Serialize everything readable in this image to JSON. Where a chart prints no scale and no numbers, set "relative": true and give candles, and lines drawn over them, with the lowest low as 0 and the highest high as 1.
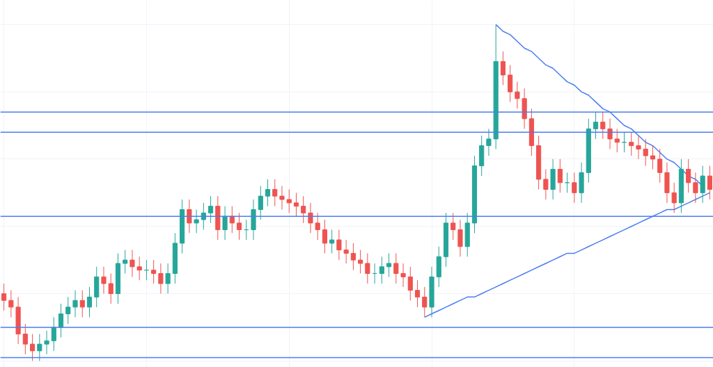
{
  "chart_data": {
    "type": "candlestick",
    "relative": true,
    "grid": true,
    "categories": [
      null,
      null,
      null,
      null,
      null,
      null,
      null,
      null,
      null,
      null,
      null,
      null,
      null,
      null,
      null,
      null,
      null,
      null,
      null,
      null,
      null,
      null,
      null,
      null,
      null,
      null,
      null,
      null,
      null,
      null,
      null,
      null,
      null,
      null,
      null,
      null,
      null,
      null,
      null,
      null,
      null,
      null,
      null,
      null,
      null,
      null,
      null,
      null,
      null,
      null,
      null,
      null,
      null,
      null,
      null,
      null,
      null,
      null,
      null,
      null,
      null,
      null,
      null,
      null,
      null,
      null,
      null,
      null,
      null,
      null,
      null,
      null,
      null,
      null,
      null,
      null,
      null,
      null,
      null,
      null,
      null,
      null,
      null,
      null,
      null,
      null,
      null,
      null,
      null,
      null,
      null,
      null,
      null,
      null,
      null,
      null,
      null,
      null,
      null,
      null
    ],
    "colors": [
      "#ef5350",
      "#ef5350",
      "#ef5350",
      "#ef5350",
      "#ef5350",
      "#26a69a",
      "#26a69a",
      "#26a69a",
      "#26a69a",
      "#26a69a",
      "#26a69a",
      "#ef5350",
      "#26a69a",
      "#26a69a",
      "#ef5350",
      "#ef5350",
      "#26a69a",
      "#26a69a",
      "#ef5350",
      "#ef5350",
      "#26a69a",
      "#ef5350",
      "#ef5350",
      "#26a69a",
      "#26a69a",
      "#26a69a",
      "#ef5350",
      "#26a69a",
      "#26a69a",
      "#26a69a",
      "#ef5350",
      "#26a69a",
      "#ef5350",
      "#ef5350",
      "#26a69a",
      "#26a69a",
      "#26a69a",
      "#26a69a",
      "#ef5350",
      "#ef5350",
      "#ef5350",
      "#ef5350",
      "#ef5350",
      "#ef5350",
      "#ef5350",
      "#ef5350",
      "#26a69a",
      "#ef5350",
      "#ef5350",
      "#ef5350",
      "#ef5350",
      "#ef5350",
      "#26a69a",
      "#26a69a",
      "#26a69a",
      "#ef5350",
      "#ef5350",
      "#ef5350",
      "#ef5350",
      "#ef5350",
      "#26a69a",
      "#26a69a",
      "#26a69a",
      "#ef5350",
      "#ef5350",
      "#26a69a",
      "#26a69a",
      "#26a69a",
      "#26a69a",
      "#26a69a",
      "#ef5350",
      "#ef5350",
      "#ef5350",
      "#ef5350",
      "#ef5350",
      "#ef5350",
      "#ef5350",
      "#26a69a",
      "#ef5350",
      "#26a69a",
      "#ef5350",
      "#26a69a",
      "#26a69a",
      "#26a69a",
      "#ef5350",
      "#ef5350",
      "#ef5350",
      "#26a69a",
      "#ef5350",
      "#ef5350",
      "#ef5350",
      "#ef5350",
      "#ef5350",
      "#ef5350",
      "#ef5350",
      "#26a69a",
      "#ef5350",
      "#ef5350",
      "#26a69a",
      "#ef5350"
    ],
    "ohlc": [
      [
        0.2,
        0.23,
        0.15,
        0.18
      ],
      [
        0.18,
        0.21,
        0.13,
        0.16
      ],
      [
        0.16,
        0.19,
        0.05,
        0.08
      ],
      [
        0.08,
        0.11,
        0.02,
        0.05
      ],
      [
        0.05,
        0.08,
        0.0,
        0.03
      ],
      [
        0.03,
        0.08,
        0.0,
        0.05
      ],
      [
        0.05,
        0.09,
        0.02,
        0.06
      ],
      [
        0.06,
        0.13,
        0.03,
        0.1
      ],
      [
        0.1,
        0.17,
        0.07,
        0.14
      ],
      [
        0.14,
        0.19,
        0.11,
        0.16
      ],
      [
        0.16,
        0.21,
        0.13,
        0.18
      ],
      [
        0.18,
        0.21,
        0.13,
        0.16
      ],
      [
        0.16,
        0.22,
        0.13,
        0.19
      ],
      [
        0.19,
        0.28,
        0.16,
        0.25
      ],
      [
        0.25,
        0.28,
        0.2,
        0.23
      ],
      [
        0.23,
        0.26,
        0.17,
        0.2
      ],
      [
        0.2,
        0.32,
        0.17,
        0.29
      ],
      [
        0.29,
        0.33,
        0.26,
        0.3
      ],
      [
        0.3,
        0.33,
        0.25,
        0.28
      ],
      [
        0.28,
        0.31,
        0.24,
        0.27
      ],
      [
        0.27,
        0.3,
        0.24,
        0.27
      ],
      [
        0.27,
        0.3,
        0.23,
        0.26
      ],
      [
        0.26,
        0.29,
        0.2,
        0.23
      ],
      [
        0.23,
        0.29,
        0.2,
        0.26
      ],
      [
        0.26,
        0.38,
        0.23,
        0.35
      ],
      [
        0.35,
        0.48,
        0.32,
        0.45
      ],
      [
        0.45,
        0.48,
        0.38,
        0.41
      ],
      [
        0.41,
        0.45,
        0.38,
        0.42
      ],
      [
        0.42,
        0.47,
        0.39,
        0.44
      ],
      [
        0.44,
        0.49,
        0.41,
        0.46
      ],
      [
        0.46,
        0.49,
        0.36,
        0.39
      ],
      [
        0.39,
        0.46,
        0.36,
        0.43
      ],
      [
        0.43,
        0.46,
        0.38,
        0.41
      ],
      [
        0.41,
        0.44,
        0.36,
        0.39
      ],
      [
        0.39,
        0.42,
        0.36,
        0.39
      ],
      [
        0.39,
        0.48,
        0.36,
        0.45
      ],
      [
        0.45,
        0.52,
        0.42,
        0.49
      ],
      [
        0.49,
        0.54,
        0.46,
        0.51
      ],
      [
        0.51,
        0.54,
        0.46,
        0.49
      ],
      [
        0.49,
        0.52,
        0.45,
        0.48
      ],
      [
        0.48,
        0.51,
        0.44,
        0.47
      ],
      [
        0.47,
        0.5,
        0.43,
        0.46
      ],
      [
        0.46,
        0.49,
        0.41,
        0.44
      ],
      [
        0.44,
        0.47,
        0.38,
        0.41
      ],
      [
        0.41,
        0.44,
        0.36,
        0.39
      ],
      [
        0.39,
        0.42,
        0.32,
        0.35
      ],
      [
        0.35,
        0.39,
        0.32,
        0.36
      ],
      [
        0.36,
        0.39,
        0.3,
        0.33
      ],
      [
        0.33,
        0.36,
        0.29,
        0.32
      ],
      [
        0.32,
        0.35,
        0.27,
        0.3
      ],
      [
        0.3,
        0.33,
        0.26,
        0.29
      ],
      [
        0.29,
        0.32,
        0.23,
        0.26
      ],
      [
        0.26,
        0.29,
        0.23,
        0.26
      ],
      [
        0.26,
        0.31,
        0.23,
        0.28
      ],
      [
        0.28,
        0.32,
        0.25,
        0.29
      ],
      [
        0.29,
        0.32,
        0.23,
        0.26
      ],
      [
        0.26,
        0.29,
        0.22,
        0.25
      ],
      [
        0.25,
        0.28,
        0.18,
        0.21
      ],
      [
        0.21,
        0.24,
        0.16,
        0.19
      ],
      [
        0.19,
        0.22,
        0.13,
        0.16
      ],
      [
        0.16,
        0.28,
        0.13,
        0.25
      ],
      [
        0.25,
        0.34,
        0.22,
        0.31
      ],
      [
        0.31,
        0.44,
        0.28,
        0.41
      ],
      [
        0.41,
        0.44,
        0.36,
        0.39
      ],
      [
        0.39,
        0.42,
        0.31,
        0.34
      ],
      [
        0.34,
        0.44,
        0.31,
        0.41
      ],
      [
        0.41,
        0.61,
        0.38,
        0.58
      ],
      [
        0.58,
        0.67,
        0.55,
        0.64
      ],
      [
        0.64,
        0.69,
        0.61,
        0.66
      ],
      [
        0.66,
        1.0,
        0.63,
        0.89
      ],
      [
        0.89,
        0.92,
        0.82,
        0.85
      ],
      [
        0.85,
        0.88,
        0.77,
        0.8
      ],
      [
        0.8,
        0.83,
        0.75,
        0.78
      ],
      [
        0.78,
        0.81,
        0.69,
        0.72
      ],
      [
        0.72,
        0.75,
        0.61,
        0.64
      ],
      [
        0.64,
        0.67,
        0.51,
        0.54
      ],
      [
        0.54,
        0.57,
        0.48,
        0.51
      ],
      [
        0.51,
        0.6,
        0.48,
        0.57
      ],
      [
        0.57,
        0.6,
        0.5,
        0.53
      ],
      [
        0.53,
        0.56,
        0.5,
        0.53
      ],
      [
        0.53,
        0.56,
        0.47,
        0.5
      ],
      [
        0.5,
        0.59,
        0.47,
        0.56
      ],
      [
        0.56,
        0.72,
        0.53,
        0.69
      ],
      [
        0.69,
        0.74,
        0.66,
        0.71
      ],
      [
        0.71,
        0.74,
        0.66,
        0.69
      ],
      [
        0.69,
        0.72,
        0.63,
        0.66
      ],
      [
        0.66,
        0.69,
        0.62,
        0.65
      ],
      [
        0.65,
        0.68,
        0.62,
        0.65
      ],
      [
        0.65,
        0.68,
        0.61,
        0.64
      ],
      [
        0.64,
        0.67,
        0.6,
        0.63
      ],
      [
        0.63,
        0.66,
        0.58,
        0.61
      ],
      [
        0.61,
        0.64,
        0.57,
        0.6
      ],
      [
        0.6,
        0.63,
        0.53,
        0.56
      ],
      [
        0.56,
        0.59,
        0.47,
        0.5
      ],
      [
        0.5,
        0.53,
        0.44,
        0.47
      ],
      [
        0.47,
        0.6,
        0.44,
        0.57
      ],
      [
        0.57,
        0.6,
        0.5,
        0.53
      ],
      [
        0.53,
        0.56,
        0.47,
        0.5
      ],
      [
        0.5,
        0.58,
        0.47,
        0.55
      ],
      [
        0.55,
        0.58,
        0.48,
        0.51
      ]
    ],
    "series": [
      {
        "type": "line",
        "color": "#4a7cf0",
        "values": [
          null,
          null,
          null,
          null,
          null,
          null,
          null,
          null,
          null,
          null,
          null,
          null,
          null,
          null,
          null,
          null,
          null,
          null,
          null,
          null,
          null,
          null,
          null,
          null,
          null,
          null,
          null,
          null,
          null,
          null,
          null,
          null,
          null,
          null,
          null,
          null,
          null,
          null,
          null,
          null,
          null,
          null,
          null,
          null,
          null,
          null,
          null,
          null,
          null,
          null,
          null,
          null,
          null,
          null,
          null,
          null,
          null,
          null,
          null,
          null,
          null,
          null,
          null,
          null,
          null,
          null,
          null,
          null,
          null,
          1.0,
          0.98,
          0.97,
          0.95,
          0.93,
          0.92,
          0.9,
          0.88,
          0.87,
          0.85,
          0.83,
          0.82,
          0.8,
          0.79,
          0.77,
          0.75,
          0.74,
          0.72,
          0.7,
          0.69,
          0.67,
          0.65,
          0.64,
          0.62,
          0.6,
          0.59,
          0.57,
          0.55,
          0.54,
          0.52,
          null
        ]
      },
      {
        "type": "line",
        "color": "#4a7cf0",
        "values": [
          null,
          null,
          null,
          null,
          null,
          null,
          null,
          null,
          null,
          null,
          null,
          null,
          null,
          null,
          null,
          null,
          null,
          null,
          null,
          null,
          null,
          null,
          null,
          null,
          null,
          null,
          null,
          null,
          null,
          null,
          null,
          null,
          null,
          null,
          null,
          null,
          null,
          null,
          null,
          null,
          null,
          null,
          null,
          null,
          null,
          null,
          null,
          null,
          null,
          null,
          null,
          null,
          null,
          null,
          null,
          null,
          null,
          null,
          null,
          0.13,
          0.14,
          0.15,
          0.16,
          0.17,
          0.18,
          0.19,
          0.19,
          0.2,
          0.21,
          0.22,
          0.23,
          0.24,
          0.25,
          0.26,
          0.27,
          0.28,
          0.29,
          0.3,
          0.31,
          0.32,
          0.32,
          0.33,
          0.34,
          0.35,
          0.36,
          0.37,
          0.38,
          0.39,
          0.4,
          0.41,
          0.42,
          0.43,
          0.44,
          0.45,
          0.45,
          0.46,
          0.47,
          0.48,
          0.49,
          0.5
        ]
      }
    ],
    "ref_lines": [
      {
        "axis": "y",
        "value": 0.74,
        "color": "#4a7cf0"
      },
      {
        "axis": "y",
        "value": 0.68,
        "color": "#4a7cf0"
      },
      {
        "axis": "y",
        "value": 0.43,
        "color": "#4a7cf0"
      },
      {
        "axis": "y",
        "value": 0.1,
        "color": "#4a7cf0"
      },
      {
        "axis": "y",
        "value": 0.01,
        "color": "#4a7cf0"
      }
    ]
  }
}
